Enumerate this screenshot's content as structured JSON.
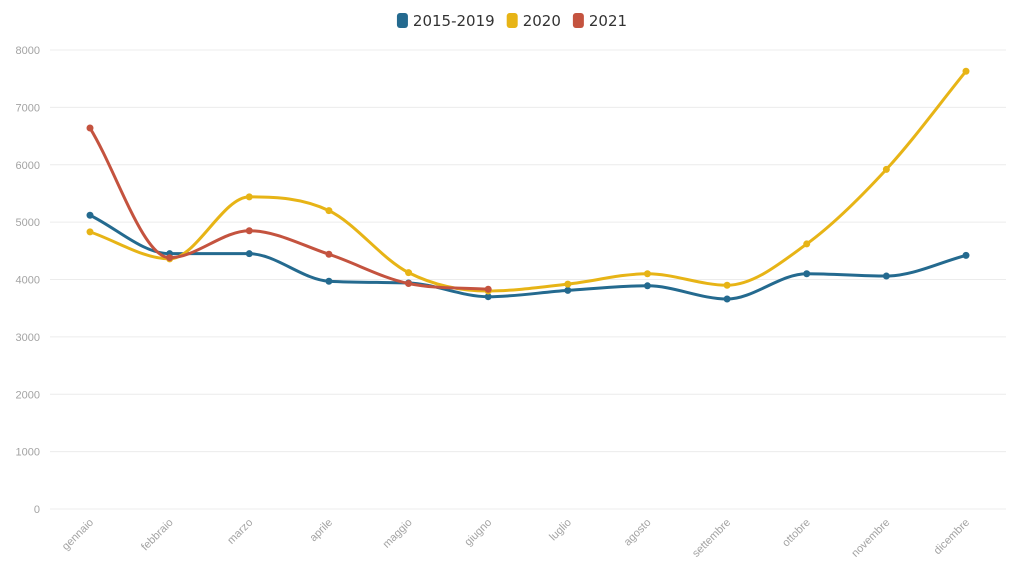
{
  "chart_data": {
    "type": "line",
    "title": "",
    "xlabel": "",
    "ylabel": "",
    "ylim": [
      0,
      8000
    ],
    "yticks": [
      "0",
      "1000",
      "2000",
      "3000",
      "4000",
      "5000",
      "6000",
      "7000",
      "8000"
    ],
    "grid": true,
    "legend_position": "top-center",
    "categories": [
      "gennaio",
      "febbraio",
      "marzo",
      "aprile",
      "maggio",
      "giugno",
      "luglio",
      "agosto",
      "settembre",
      "ottobre",
      "novembre",
      "dicembre"
    ],
    "series": [
      {
        "name": "2015-2019",
        "color": "#246a8f",
        "values": [
          5120,
          4450,
          4450,
          3970,
          3940,
          3700,
          3810,
          3890,
          3660,
          4100,
          4060,
          4420
        ]
      },
      {
        "name": "2020",
        "color": "#e7b416",
        "values": [
          4830,
          4360,
          5440,
          5200,
          4120,
          3800,
          3920,
          4100,
          3900,
          4620,
          5920,
          7630
        ]
      },
      {
        "name": "2021",
        "color": "#c4533f",
        "values": [
          6640,
          4380,
          4850,
          4440,
          3930,
          3830,
          null,
          null,
          null,
          null,
          null,
          null
        ]
      }
    ]
  }
}
